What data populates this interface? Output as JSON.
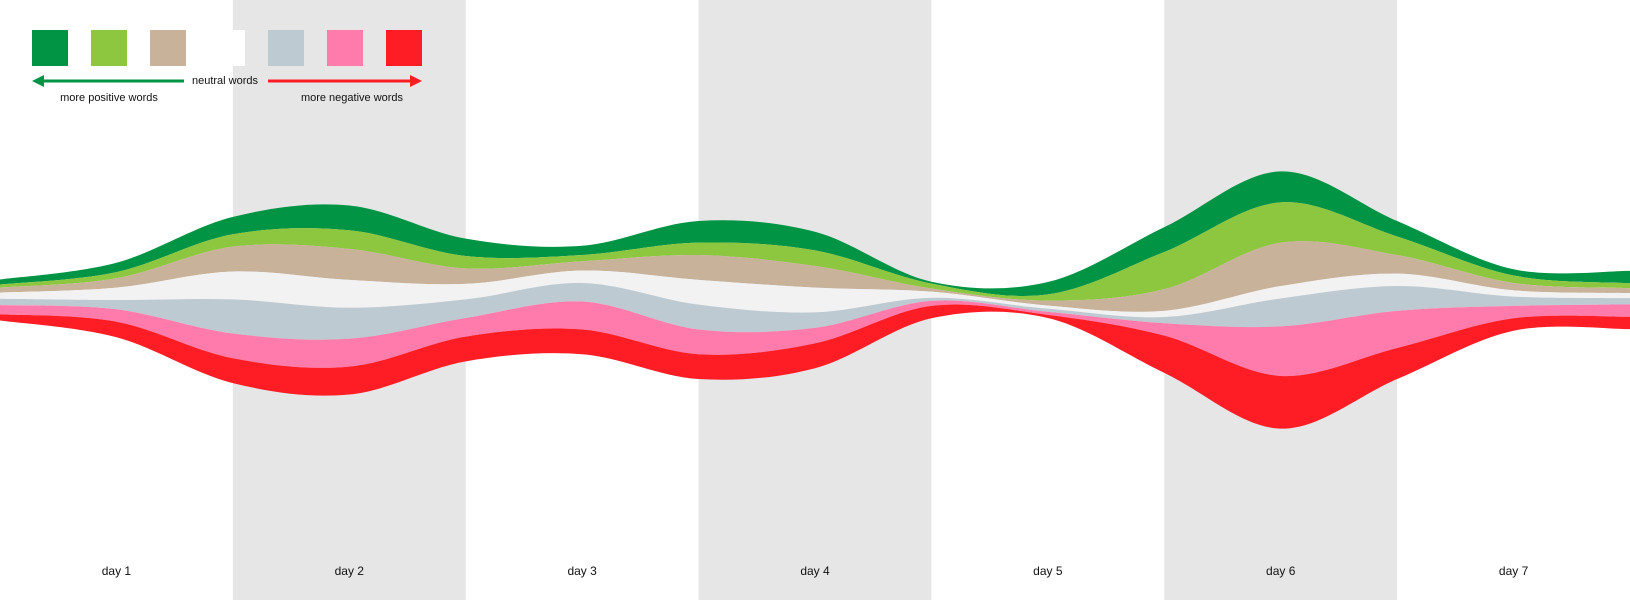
{
  "chart_data": {
    "type": "area",
    "subtype": "streamgraph",
    "categories": [
      "day 1",
      "day 2",
      "day 3",
      "day 4",
      "day 5",
      "day 6",
      "day 7"
    ],
    "alternate_day_shading": "#e6e6e6",
    "x": [
      0,
      0.5,
      1,
      1.5,
      2,
      2.5,
      3,
      3.5,
      4,
      4.5,
      5,
      5.5,
      6,
      6.5,
      7
    ],
    "series": [
      {
        "color": "#009444",
        "values": [
          8,
          15,
          28,
          40,
          28,
          15,
          35,
          30,
          3,
          20,
          40,
          50,
          25,
          10,
          20
        ]
      },
      {
        "color": "#8dc63f",
        "values": [
          5,
          10,
          20,
          30,
          20,
          10,
          20,
          25,
          8,
          10,
          60,
          65,
          30,
          12,
          8
        ]
      },
      {
        "color": "#c8b29a",
        "values": [
          8,
          15,
          40,
          50,
          25,
          15,
          40,
          35,
          5,
          8,
          35,
          70,
          30,
          12,
          8
        ]
      },
      {
        "color": "#f2f2f2",
        "values": [
          10,
          20,
          45,
          45,
          25,
          20,
          40,
          40,
          10,
          5,
          10,
          20,
          20,
          10,
          8
        ]
      },
      {
        "color": "#bdcad2",
        "values": [
          10,
          15,
          55,
          50,
          30,
          30,
          40,
          25,
          5,
          5,
          10,
          45,
          40,
          15,
          10
        ]
      },
      {
        "color": "#ff7bac",
        "values": [
          15,
          20,
          40,
          45,
          30,
          45,
          40,
          25,
          8,
          5,
          20,
          80,
          60,
          20,
          20
        ]
      },
      {
        "color": "#ff1d25",
        "values": [
          10,
          25,
          40,
          45,
          40,
          40,
          40,
          40,
          20,
          5,
          60,
          85,
          50,
          20,
          20
        ]
      }
    ],
    "legend": {
      "placement": "top-left",
      "neutral_label": "neutral words",
      "positive_label": "more positive words",
      "negative_label": "more negative words",
      "colors": [
        "#009444",
        "#8dc63f",
        "#c8b29a",
        "#ffffff",
        "#bdcad2",
        "#ff7bac",
        "#ff1d25"
      ],
      "positive_arrow_color": "#009444",
      "negative_arrow_color": "#ff1d25"
    }
  }
}
